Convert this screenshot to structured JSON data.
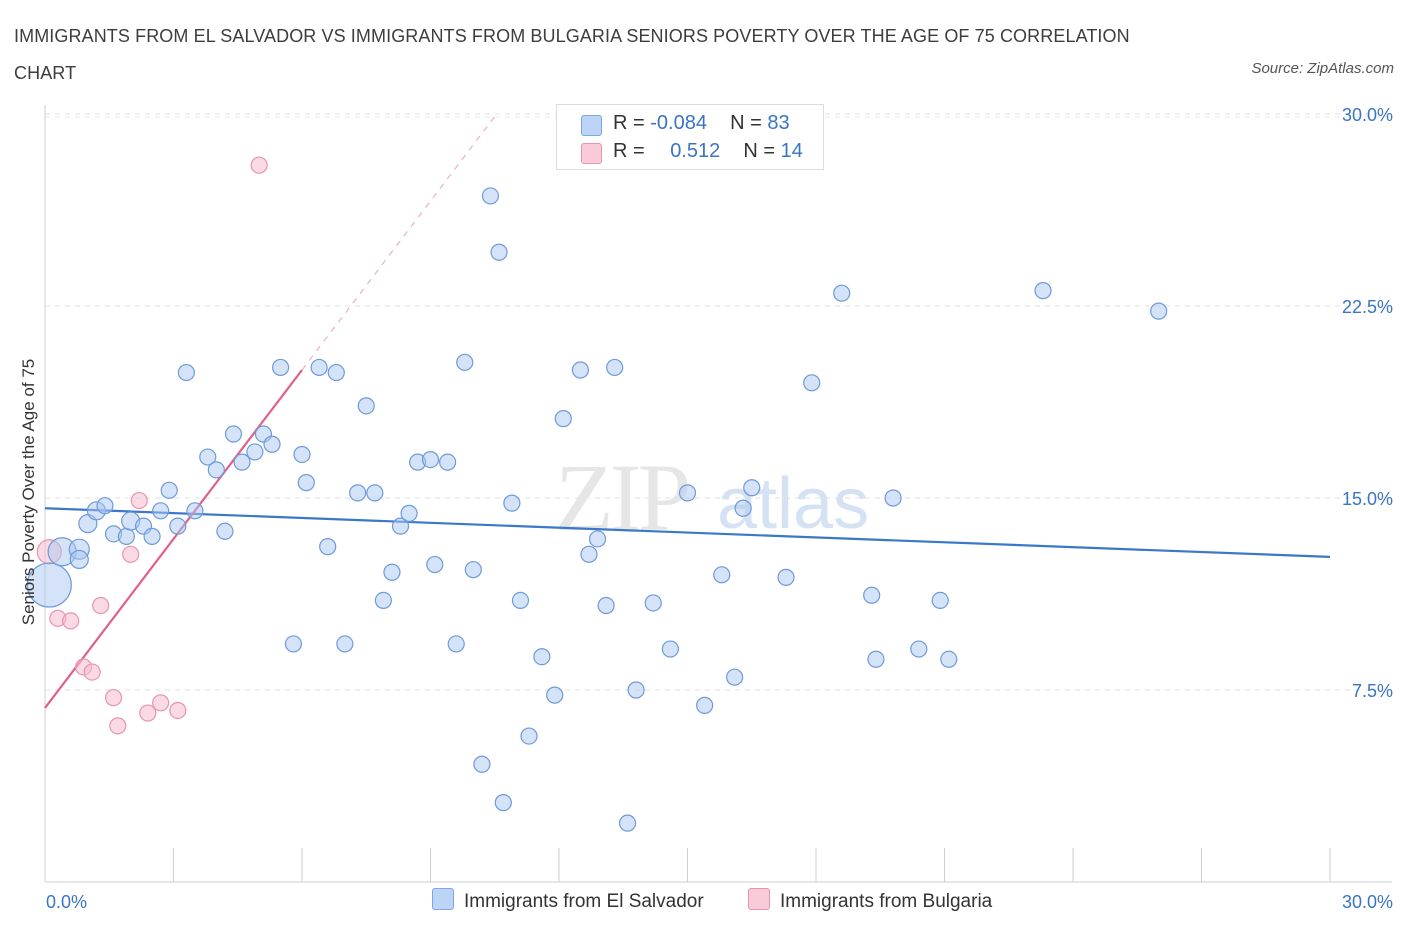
{
  "title": "IMMIGRANTS FROM EL SALVADOR VS IMMIGRANTS FROM BULGARIA SENIORS POVERTY OVER THE AGE OF 75 CORRELATION CHART",
  "source": "Source: ZipAtlas.com",
  "watermark": {
    "part1": "ZIP",
    "part2": "atlas"
  },
  "legend": {
    "r_label": "R =",
    "n_label": "N =",
    "series1": {
      "r": "-0.084",
      "n": "83"
    },
    "series2": {
      "r": "0.512",
      "n": "14"
    }
  },
  "chart_data": {
    "type": "scatter",
    "title": "IMMIGRANTS FROM EL SALVADOR VS IMMIGRANTS FROM BULGARIA SENIORS POVERTY OVER THE AGE OF 75 CORRELATION CHART",
    "xlabel": "",
    "ylabel": "Seniors Poverty Over the Age of 75",
    "xlim": [
      0,
      30
    ],
    "ylim": [
      0,
      30.5
    ],
    "x_tick_labels": [
      "0.0%",
      "30.0%"
    ],
    "y_ticks": [
      7.5,
      15.0,
      22.5,
      30.0
    ],
    "y_tick_labels": [
      "7.5%",
      "15.0%",
      "22.5%",
      "30.0%"
    ],
    "grid": true,
    "legend_position": "top-center",
    "colors": {
      "series1": "#3a78c9",
      "series1_fill": "#aac8f0",
      "series2": "#e0608a",
      "series2_fill": "#f6bccd"
    },
    "series": [
      {
        "name": "Immigrants from El Salvador",
        "r": -0.084,
        "n": 83,
        "trendline": {
          "x": [
            0,
            30
          ],
          "y": [
            14.6,
            12.7
          ]
        },
        "points": [
          [
            0.1,
            11.6,
            22
          ],
          [
            0.4,
            12.9,
            14
          ],
          [
            0.8,
            13.0,
            10
          ],
          [
            0.8,
            12.6,
            9
          ],
          [
            1.0,
            14.0,
            9
          ],
          [
            1.2,
            14.5,
            9
          ],
          [
            1.4,
            14.7,
            8
          ],
          [
            1.6,
            13.6,
            8
          ],
          [
            1.9,
            13.5,
            8
          ],
          [
            2.0,
            14.1,
            9
          ],
          [
            2.3,
            13.9,
            8
          ],
          [
            2.5,
            13.5,
            8
          ],
          [
            2.7,
            14.5,
            8
          ],
          [
            2.9,
            15.3,
            8
          ],
          [
            3.1,
            13.9,
            8
          ],
          [
            3.3,
            19.9,
            8
          ],
          [
            3.5,
            14.5,
            8
          ],
          [
            3.8,
            16.6,
            8
          ],
          [
            4.0,
            16.1,
            8
          ],
          [
            4.2,
            13.7,
            8
          ],
          [
            4.4,
            17.5,
            8
          ],
          [
            4.6,
            16.4,
            8
          ],
          [
            4.9,
            16.8,
            8
          ],
          [
            5.1,
            17.5,
            8
          ],
          [
            5.3,
            17.1,
            8
          ],
          [
            5.5,
            20.1,
            8
          ],
          [
            5.8,
            9.3,
            8
          ],
          [
            6.0,
            16.7,
            8
          ],
          [
            6.1,
            15.6,
            8
          ],
          [
            6.4,
            20.1,
            8
          ],
          [
            6.6,
            13.1,
            8
          ],
          [
            6.8,
            19.9,
            8
          ],
          [
            7.0,
            9.3,
            8
          ],
          [
            7.3,
            15.2,
            8
          ],
          [
            7.5,
            18.6,
            8
          ],
          [
            7.7,
            15.2,
            8
          ],
          [
            7.9,
            11.0,
            8
          ],
          [
            8.1,
            12.1,
            8
          ],
          [
            8.3,
            13.9,
            8
          ],
          [
            8.5,
            14.4,
            8
          ],
          [
            8.7,
            16.4,
            8
          ],
          [
            9.0,
            16.5,
            8
          ],
          [
            9.1,
            12.4,
            8
          ],
          [
            9.4,
            16.4,
            8
          ],
          [
            9.6,
            9.3,
            8
          ],
          [
            9.8,
            20.3,
            8
          ],
          [
            10.0,
            12.2,
            8
          ],
          [
            10.2,
            4.6,
            8
          ],
          [
            10.4,
            26.8,
            8
          ],
          [
            10.6,
            24.6,
            8
          ],
          [
            10.7,
            3.1,
            8
          ],
          [
            10.9,
            14.8,
            8
          ],
          [
            11.1,
            11.0,
            8
          ],
          [
            11.3,
            5.7,
            8
          ],
          [
            11.6,
            8.8,
            8
          ],
          [
            11.9,
            7.3,
            8
          ],
          [
            12.1,
            18.1,
            8
          ],
          [
            12.5,
            20.0,
            8
          ],
          [
            12.7,
            12.8,
            8
          ],
          [
            12.9,
            13.4,
            8
          ],
          [
            13.1,
            10.8,
            8
          ],
          [
            13.3,
            20.1,
            8
          ],
          [
            13.6,
            2.3,
            8
          ],
          [
            13.8,
            7.5,
            8
          ],
          [
            14.2,
            10.9,
            8
          ],
          [
            14.6,
            9.1,
            8
          ],
          [
            15.0,
            15.2,
            8
          ],
          [
            15.4,
            6.9,
            8
          ],
          [
            15.8,
            12.0,
            8
          ],
          [
            16.1,
            8.0,
            8
          ],
          [
            16.3,
            14.6,
            8
          ],
          [
            16.5,
            15.4,
            8
          ],
          [
            17.3,
            11.9,
            8
          ],
          [
            17.9,
            19.5,
            8
          ],
          [
            18.6,
            23.0,
            8
          ],
          [
            19.3,
            11.2,
            8
          ],
          [
            19.4,
            8.7,
            8
          ],
          [
            19.8,
            15.0,
            8
          ],
          [
            20.4,
            9.1,
            8
          ],
          [
            20.9,
            11.0,
            8
          ],
          [
            21.1,
            8.7,
            8
          ],
          [
            23.3,
            23.1,
            8
          ],
          [
            26.0,
            22.3,
            8
          ]
        ]
      },
      {
        "name": "Immigrants from Bulgaria",
        "r": 0.512,
        "n": 14,
        "trendline": {
          "x": [
            0,
            6.0
          ],
          "y": [
            6.8,
            20.0
          ],
          "x_dashed_end": 10.5
        },
        "points": [
          [
            0.1,
            12.9,
            12
          ],
          [
            0.3,
            10.3,
            8
          ],
          [
            0.6,
            10.2,
            8
          ],
          [
            0.9,
            8.4,
            8
          ],
          [
            1.1,
            8.2,
            8
          ],
          [
            1.3,
            10.8,
            8
          ],
          [
            1.6,
            7.2,
            8
          ],
          [
            1.7,
            6.1,
            8
          ],
          [
            2.0,
            12.8,
            8
          ],
          [
            2.2,
            14.9,
            8
          ],
          [
            2.4,
            6.6,
            8
          ],
          [
            2.7,
            7.0,
            8
          ],
          [
            3.1,
            6.7,
            8
          ],
          [
            5.0,
            28.0,
            8
          ]
        ]
      }
    ]
  },
  "bottom_legend": {
    "series1_label": "Immigrants from El Salvador",
    "series2_label": "Immigrants from Bulgaria"
  }
}
